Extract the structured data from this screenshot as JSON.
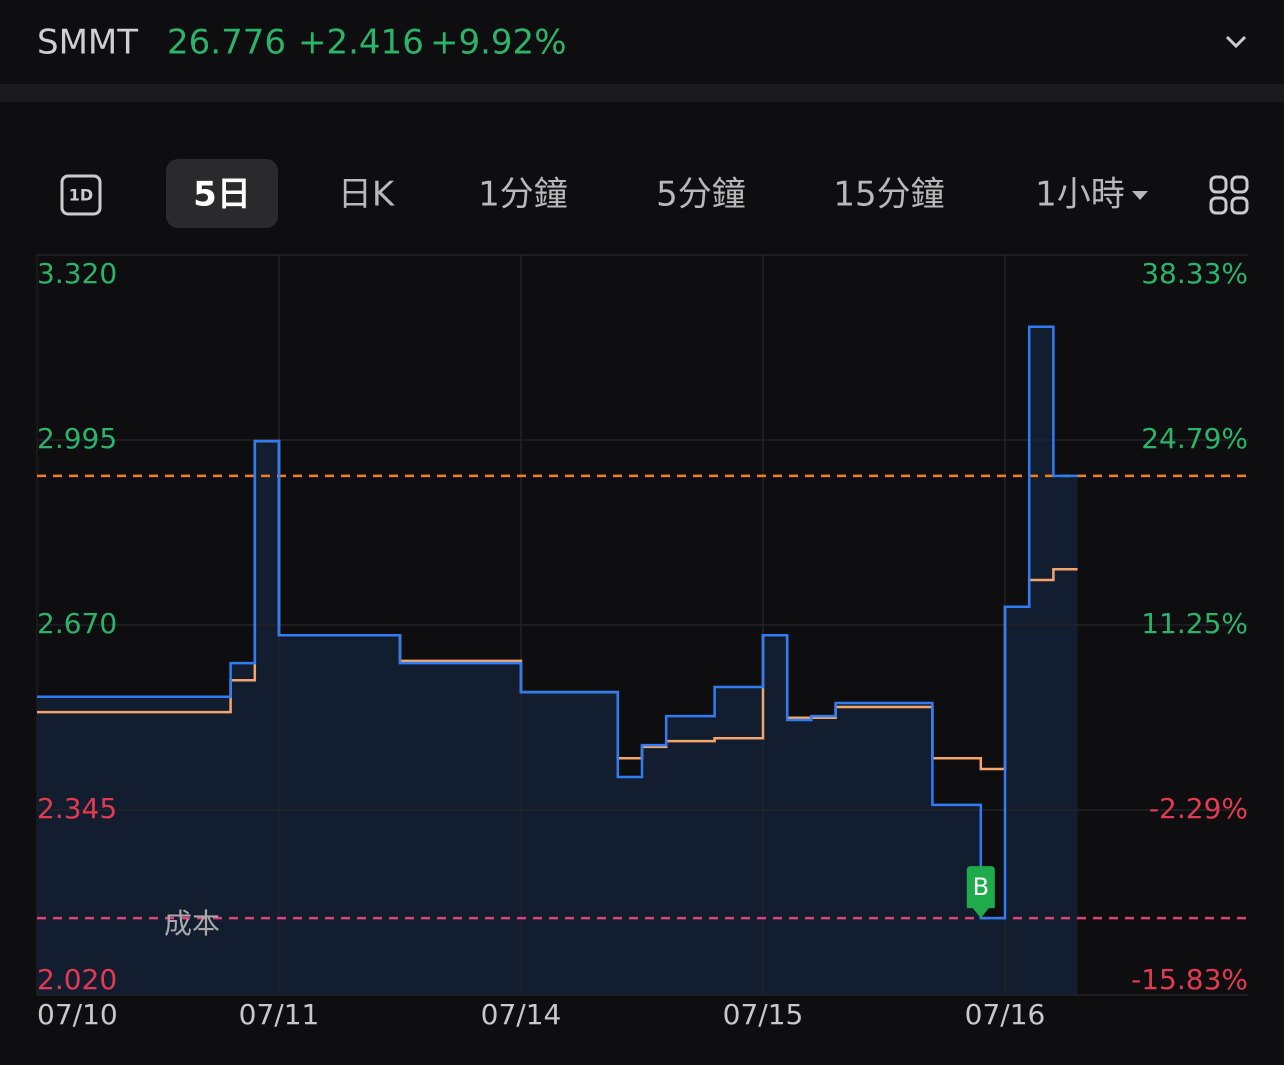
{
  "header": {
    "ticker": "SMMT",
    "price": "26.776",
    "change": "+2.416",
    "change_pct": "+9.92%"
  },
  "toolbar": {
    "icon_label": "1D",
    "tabs": [
      {
        "label": "5日",
        "active": true
      },
      {
        "label": "日K",
        "active": false
      },
      {
        "label": "1分鐘",
        "active": false
      },
      {
        "label": "5分鐘",
        "active": false
      },
      {
        "label": "15分鐘",
        "active": false
      },
      {
        "label": "1小時",
        "active": false
      }
    ]
  },
  "chart_data": {
    "type": "line",
    "step": true,
    "categories": [
      "07/10",
      null,
      null,
      null,
      null,
      null,
      null,
      null,
      null,
      null,
      "07/11",
      null,
      null,
      null,
      null,
      null,
      null,
      null,
      null,
      null,
      "07/14",
      null,
      null,
      null,
      null,
      null,
      null,
      null,
      null,
      null,
      "07/15",
      null,
      null,
      null,
      null,
      null,
      null,
      null,
      null,
      null,
      "07/16",
      null,
      null
    ],
    "series": [
      {
        "color": "#f4a56c",
        "values": [
          2.517,
          2.517,
          2.517,
          2.517,
          2.517,
          2.517,
          2.517,
          2.517,
          2.573,
          2.993,
          2.652,
          2.652,
          2.652,
          2.652,
          2.652,
          2.607,
          2.607,
          2.607,
          2.607,
          2.607,
          2.552,
          2.552,
          2.552,
          2.552,
          2.436,
          2.456,
          2.466,
          2.466,
          2.471,
          2.471,
          2.652,
          2.507,
          2.507,
          2.526,
          2.526,
          2.526,
          2.526,
          2.436,
          2.436,
          2.417,
          2.702,
          2.749,
          2.768
        ]
      },
      {
        "color": "#2f7cf4",
        "fill": "#131d30",
        "values": [
          2.544,
          2.544,
          2.544,
          2.544,
          2.544,
          2.544,
          2.544,
          2.544,
          2.603,
          2.993,
          2.652,
          2.652,
          2.652,
          2.652,
          2.652,
          2.603,
          2.603,
          2.603,
          2.603,
          2.603,
          2.552,
          2.552,
          2.552,
          2.552,
          2.403,
          2.459,
          2.51,
          2.51,
          2.561,
          2.561,
          2.652,
          2.503,
          2.51,
          2.533,
          2.533,
          2.533,
          2.533,
          2.354,
          2.354,
          2.155,
          2.702,
          3.194,
          2.932
        ]
      }
    ],
    "ylim": [
      2.02,
      3.32
    ],
    "yticks": [
      {
        "value": 3.32,
        "label": "3.320"
      },
      {
        "value": 2.995,
        "label": "2.995"
      },
      {
        "value": 2.67,
        "label": "2.670"
      },
      {
        "value": 2.345,
        "label": "2.345"
      },
      {
        "value": 2.02,
        "label": "2.020"
      }
    ],
    "y2lim": [
      -15.83,
      38.33
    ],
    "y2ticks": [
      {
        "value": 38.33,
        "label": "38.33%"
      },
      {
        "value": 24.79,
        "label": "24.79%"
      },
      {
        "value": 11.25,
        "label": "11.25%"
      },
      {
        "value": -2.29,
        "label": "-2.29%"
      },
      {
        "value": -15.83,
        "label": "-15.83%"
      }
    ],
    "grid": true,
    "up_color": "#2bb36a",
    "down_color": "#e23a52",
    "hlines": [
      {
        "value": 2.932,
        "color": "#f07f22"
      },
      {
        "value": 2.155,
        "color": "#e0407a",
        "label": "成本"
      }
    ],
    "annotations": [
      {
        "text": "B",
        "at": 39,
        "series": 1,
        "color": "#1faa4c"
      }
    ]
  }
}
